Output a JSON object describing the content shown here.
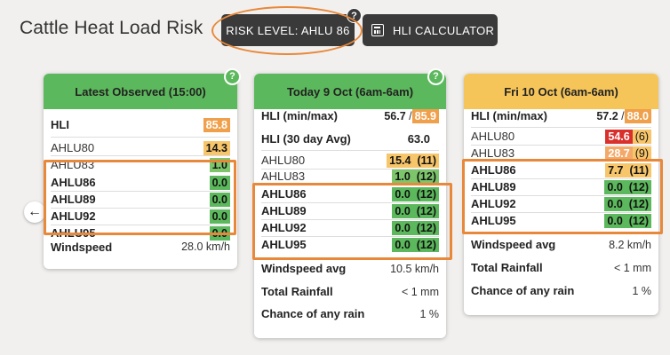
{
  "title": "Cattle Heat Load Risk",
  "risk_button": "RISK LEVEL: AHLU 86",
  "calc_button": "HLI CALCULATOR",
  "help_glyph": "?",
  "back_glyph": "←",
  "cards": [
    {
      "header": "Latest Observed (15:00)",
      "rows": [
        {
          "label": "HLI",
          "value": "85.8",
          "color": "#f0a04b"
        },
        {
          "label": "AHLU80",
          "value": "14.3",
          "color": "#f7c56a"
        },
        {
          "label": "AHLU83",
          "value": "1.0",
          "color": "#7cc56b"
        },
        {
          "label": "AHLU86",
          "value": "0.0",
          "color": "#5cb85c"
        },
        {
          "label": "AHLU89",
          "value": "0.0",
          "color": "#5cb85c"
        },
        {
          "label": "AHLU92",
          "value": "0.0",
          "color": "#5cb85c"
        },
        {
          "label": "AHLU95",
          "value": "0.0",
          "color": "#5cb85c"
        },
        {
          "label": "Windspeed",
          "value": "28.0 km/h"
        }
      ]
    },
    {
      "header": "Today 9 Oct (6am-6am)",
      "rows": [
        {
          "label": "HLI (min/max)",
          "min": "56.7",
          "sep": "/",
          "max": "85.9"
        },
        {
          "label": "HLI (30 day Avg)",
          "value": "63.0"
        },
        {
          "label": "AHLU80",
          "value": "15.4",
          "hours": "(11)"
        },
        {
          "label": "AHLU83",
          "value": "1.0",
          "hours": "(12)"
        },
        {
          "label": "AHLU86",
          "value": "0.0",
          "hours": "(12)"
        },
        {
          "label": "AHLU89",
          "value": "0.0",
          "hours": "(12)"
        },
        {
          "label": "AHLU92",
          "value": "0.0",
          "hours": "(12)"
        },
        {
          "label": "AHLU95",
          "value": "0.0",
          "hours": "(12)"
        },
        {
          "label": "Windspeed avg",
          "value": "10.5 km/h"
        },
        {
          "label": "Total Rainfall",
          "value": "< 1 mm"
        },
        {
          "label": "Chance of any rain",
          "value": "1 %"
        }
      ]
    },
    {
      "header": "Fri 10 Oct (6am-6am)",
      "rows": [
        {
          "label": "HLI (min/max)",
          "min": "57.2",
          "sep": "/",
          "max": "88.0"
        },
        {
          "label": "AHLU80",
          "value": "54.6",
          "hours": "(6)"
        },
        {
          "label": "AHLU83",
          "value": "28.7",
          "hours": "(9)"
        },
        {
          "label": "AHLU86",
          "value": "7.7",
          "hours": "(11)"
        },
        {
          "label": "AHLU89",
          "value": "0.0",
          "hours": "(12)"
        },
        {
          "label": "AHLU92",
          "value": "0.0",
          "hours": "(12)"
        },
        {
          "label": "AHLU95",
          "value": "0.0",
          "hours": "(12)"
        },
        {
          "label": "Windspeed avg",
          "value": "8.2 km/h"
        },
        {
          "label": "Total Rainfall",
          "value": "< 1 mm"
        },
        {
          "label": "Chance of any rain",
          "value": "1 %"
        }
      ]
    }
  ]
}
